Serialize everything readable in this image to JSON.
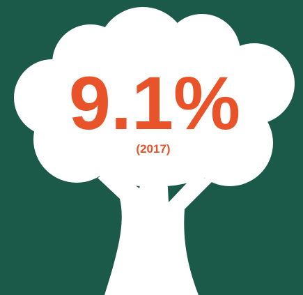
{
  "stat": {
    "value": "9.1%",
    "year": "(2017)"
  }
}
